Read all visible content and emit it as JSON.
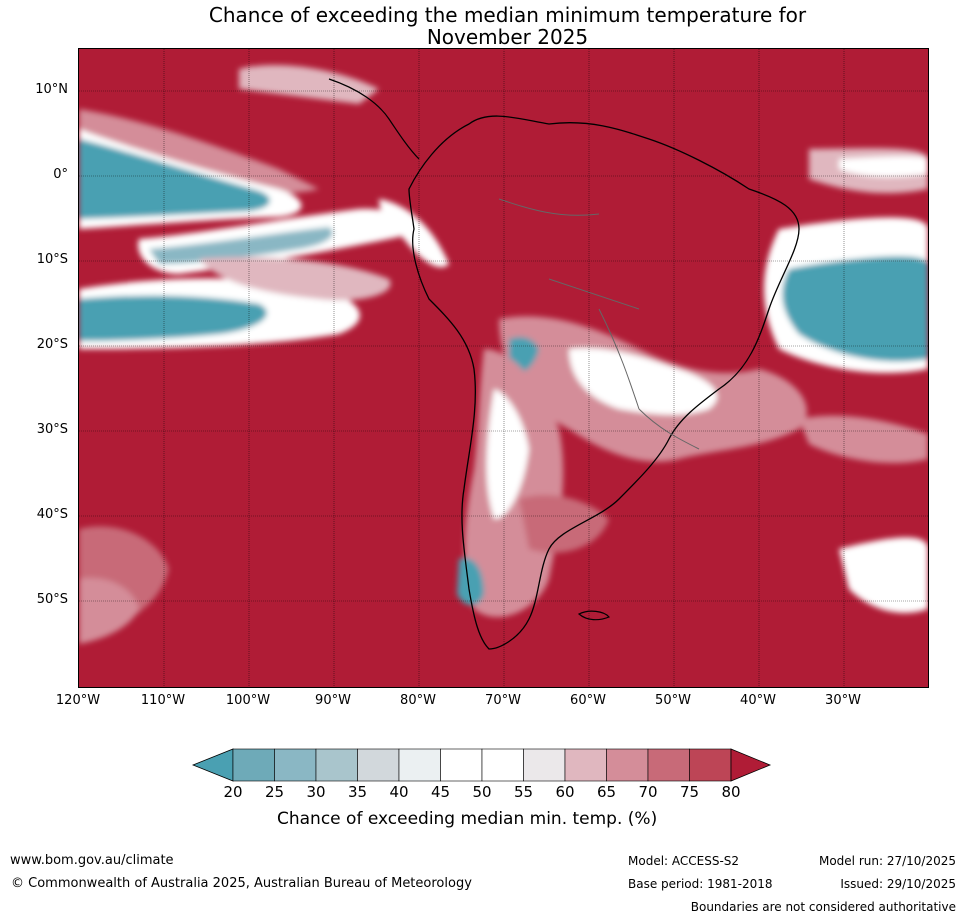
{
  "title": {
    "line1": "Chance of exceeding the median minimum temperature for",
    "line2": "November 2025"
  },
  "axes": {
    "latitudes": [
      "10°N",
      "0°",
      "10°S",
      "20°S",
      "30°S",
      "40°S",
      "50°S"
    ],
    "longitudes": [
      "120°W",
      "110°W",
      "100°W",
      "90°W",
      "80°W",
      "70°W",
      "60°W",
      "50°W",
      "40°W",
      "30°W"
    ]
  },
  "colorbar": {
    "ticks": [
      "20",
      "25",
      "30",
      "35",
      "40",
      "45",
      "50",
      "55",
      "60",
      "65",
      "70",
      "75",
      "80"
    ],
    "colors": [
      "#4aa0b2",
      "#6eaab8",
      "#8ab7c4",
      "#a9c5cc",
      "#d2d8dc",
      "#ebf0f2",
      "#ffffff",
      "#ffffff",
      "#ebe8ea",
      "#e0b7bf",
      "#d48d99",
      "#c86a78",
      "#bd4556",
      "#b01c36"
    ],
    "label": "Chance of exceeding median min. temp. (%)"
  },
  "footer": {
    "website": "www.bom.gov.au/climate",
    "copyright": "© Commonwealth of Australia 2025, Australian Bureau of Meteorology",
    "model": "Model: ACCESS-S2",
    "base_period": "Base period: 1981-2018",
    "model_run": "Model run: 27/10/2025",
    "issued": "Issued: 29/10/2025",
    "disclaimer": "Boundaries are not considered authoritative"
  }
}
